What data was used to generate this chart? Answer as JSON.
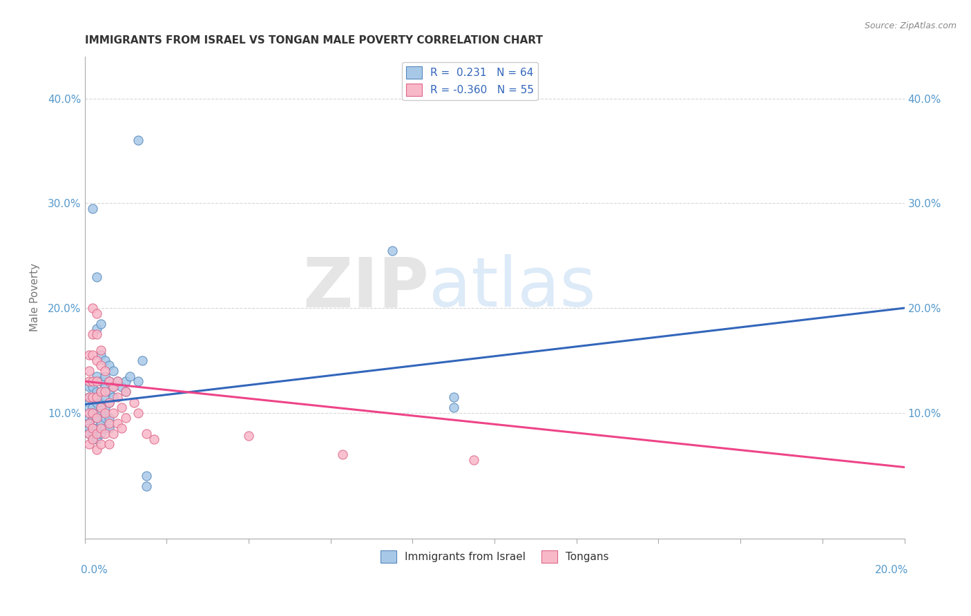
{
  "title": "IMMIGRANTS FROM ISRAEL VS TONGAN MALE POVERTY CORRELATION CHART",
  "source": "Source: ZipAtlas.com",
  "ylabel": "Male Poverty",
  "ytick_labels": [
    "10.0%",
    "20.0%",
    "30.0%",
    "40.0%"
  ],
  "ytick_values": [
    0.1,
    0.2,
    0.3,
    0.4
  ],
  "xlim": [
    0.0,
    0.2
  ],
  "ylim": [
    -0.02,
    0.44
  ],
  "blue_color": "#a8c8e8",
  "pink_color": "#f8b8c8",
  "blue_edge_color": "#5588bb",
  "pink_edge_color": "#dd6688",
  "blue_line_color": "#3366bb",
  "pink_line_color": "#ee4488",
  "watermark_zip": "ZIP",
  "watermark_atlas": "atlas",
  "blue_line": {
    "x": [
      0.0,
      0.2
    ],
    "y": [
      0.108,
      0.2
    ]
  },
  "pink_line": {
    "x": [
      0.0,
      0.2
    ],
    "y": [
      0.13,
      0.048
    ]
  },
  "blue_scatter": [
    [
      0.001,
      0.125
    ],
    [
      0.001,
      0.115
    ],
    [
      0.001,
      0.11
    ],
    [
      0.001,
      0.105
    ],
    [
      0.001,
      0.095
    ],
    [
      0.001,
      0.09
    ],
    [
      0.001,
      0.085
    ],
    [
      0.001,
      0.08
    ],
    [
      0.002,
      0.295
    ],
    [
      0.002,
      0.125
    ],
    [
      0.002,
      0.115
    ],
    [
      0.002,
      0.105
    ],
    [
      0.002,
      0.1
    ],
    [
      0.002,
      0.095
    ],
    [
      0.002,
      0.085
    ],
    [
      0.002,
      0.08
    ],
    [
      0.002,
      0.075
    ],
    [
      0.003,
      0.23
    ],
    [
      0.003,
      0.18
    ],
    [
      0.003,
      0.135
    ],
    [
      0.003,
      0.12
    ],
    [
      0.003,
      0.115
    ],
    [
      0.003,
      0.11
    ],
    [
      0.003,
      0.1
    ],
    [
      0.003,
      0.095
    ],
    [
      0.003,
      0.085
    ],
    [
      0.003,
      0.075
    ],
    [
      0.004,
      0.185
    ],
    [
      0.004,
      0.155
    ],
    [
      0.004,
      0.13
    ],
    [
      0.004,
      0.12
    ],
    [
      0.004,
      0.11
    ],
    [
      0.004,
      0.1
    ],
    [
      0.004,
      0.09
    ],
    [
      0.004,
      0.08
    ],
    [
      0.005,
      0.15
    ],
    [
      0.005,
      0.135
    ],
    [
      0.005,
      0.125
    ],
    [
      0.005,
      0.115
    ],
    [
      0.005,
      0.105
    ],
    [
      0.005,
      0.095
    ],
    [
      0.005,
      0.085
    ],
    [
      0.006,
      0.145
    ],
    [
      0.006,
      0.13
    ],
    [
      0.006,
      0.12
    ],
    [
      0.006,
      0.11
    ],
    [
      0.006,
      0.095
    ],
    [
      0.006,
      0.085
    ],
    [
      0.007,
      0.14
    ],
    [
      0.007,
      0.125
    ],
    [
      0.007,
      0.115
    ],
    [
      0.008,
      0.13
    ],
    [
      0.009,
      0.125
    ],
    [
      0.01,
      0.13
    ],
    [
      0.01,
      0.12
    ],
    [
      0.011,
      0.135
    ],
    [
      0.013,
      0.36
    ],
    [
      0.013,
      0.13
    ],
    [
      0.014,
      0.15
    ],
    [
      0.015,
      0.04
    ],
    [
      0.015,
      0.03
    ],
    [
      0.075,
      0.255
    ],
    [
      0.09,
      0.115
    ],
    [
      0.09,
      0.105
    ]
  ],
  "pink_scatter": [
    [
      0.001,
      0.155
    ],
    [
      0.001,
      0.14
    ],
    [
      0.001,
      0.13
    ],
    [
      0.001,
      0.115
    ],
    [
      0.001,
      0.1
    ],
    [
      0.001,
      0.09
    ],
    [
      0.001,
      0.08
    ],
    [
      0.001,
      0.07
    ],
    [
      0.002,
      0.2
    ],
    [
      0.002,
      0.175
    ],
    [
      0.002,
      0.155
    ],
    [
      0.002,
      0.13
    ],
    [
      0.002,
      0.115
    ],
    [
      0.002,
      0.1
    ],
    [
      0.002,
      0.085
    ],
    [
      0.002,
      0.075
    ],
    [
      0.003,
      0.195
    ],
    [
      0.003,
      0.175
    ],
    [
      0.003,
      0.15
    ],
    [
      0.003,
      0.13
    ],
    [
      0.003,
      0.115
    ],
    [
      0.003,
      0.095
    ],
    [
      0.003,
      0.08
    ],
    [
      0.003,
      0.065
    ],
    [
      0.004,
      0.16
    ],
    [
      0.004,
      0.145
    ],
    [
      0.004,
      0.12
    ],
    [
      0.004,
      0.105
    ],
    [
      0.004,
      0.085
    ],
    [
      0.004,
      0.07
    ],
    [
      0.005,
      0.14
    ],
    [
      0.005,
      0.12
    ],
    [
      0.005,
      0.1
    ],
    [
      0.005,
      0.08
    ],
    [
      0.006,
      0.13
    ],
    [
      0.006,
      0.11
    ],
    [
      0.006,
      0.09
    ],
    [
      0.006,
      0.07
    ],
    [
      0.007,
      0.125
    ],
    [
      0.007,
      0.1
    ],
    [
      0.007,
      0.08
    ],
    [
      0.008,
      0.13
    ],
    [
      0.008,
      0.115
    ],
    [
      0.008,
      0.09
    ],
    [
      0.009,
      0.105
    ],
    [
      0.009,
      0.085
    ],
    [
      0.01,
      0.12
    ],
    [
      0.01,
      0.095
    ],
    [
      0.012,
      0.11
    ],
    [
      0.013,
      0.1
    ],
    [
      0.015,
      0.08
    ],
    [
      0.017,
      0.075
    ],
    [
      0.04,
      0.078
    ],
    [
      0.063,
      0.06
    ],
    [
      0.095,
      0.055
    ]
  ]
}
